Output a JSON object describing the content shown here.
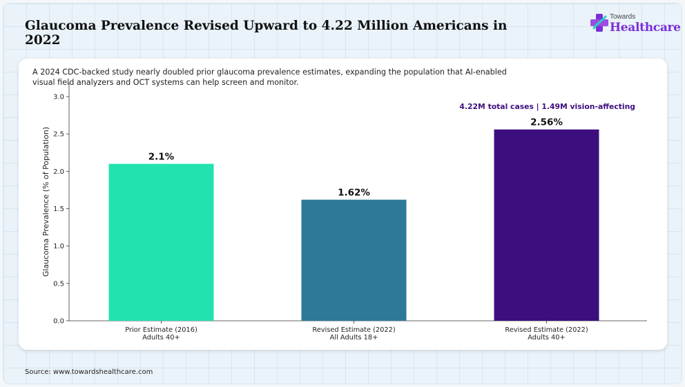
{
  "header": {
    "title": "Glaucoma Prevalence Revised Upward to 4.22 Million Americans in 2022",
    "logo_top": "Towards",
    "logo_bottom": "Healthcare"
  },
  "card": {
    "subtitle": "A 2024 CDC-backed study nearly doubled prior glaucoma prevalence estimates, expanding the population that AI-enabled visual field analyzers and OCT systems can help screen and monitor."
  },
  "footer": {
    "source": "Source: www.towardshealthcare.com"
  },
  "chart_data": {
    "type": "bar",
    "categories": [
      [
        "Prior Estimate (2016)",
        "Adults 40+"
      ],
      [
        "Revised Estimate (2022)",
        "All Adults 18+"
      ],
      [
        "Revised Estimate (2022)",
        "Adults 40+"
      ]
    ],
    "values": [
      2.1,
      1.62,
      2.56
    ],
    "value_labels": [
      "2.1%",
      "1.62%",
      "2.56%"
    ],
    "colors": [
      "#22e3b0",
      "#2e7898",
      "#3d0f7e"
    ],
    "ylabel": "Glaucoma Prevalence (% of Population)",
    "ylim": [
      0,
      3.0
    ],
    "yticks": [
      "0.0",
      "0.5",
      "1.0",
      "1.5",
      "2.0",
      "2.5",
      "3.0"
    ],
    "annotation": "4.22M total cases | 1.49M vision-affecting",
    "annotation_color": "#3d0f7e",
    "grid": false
  }
}
